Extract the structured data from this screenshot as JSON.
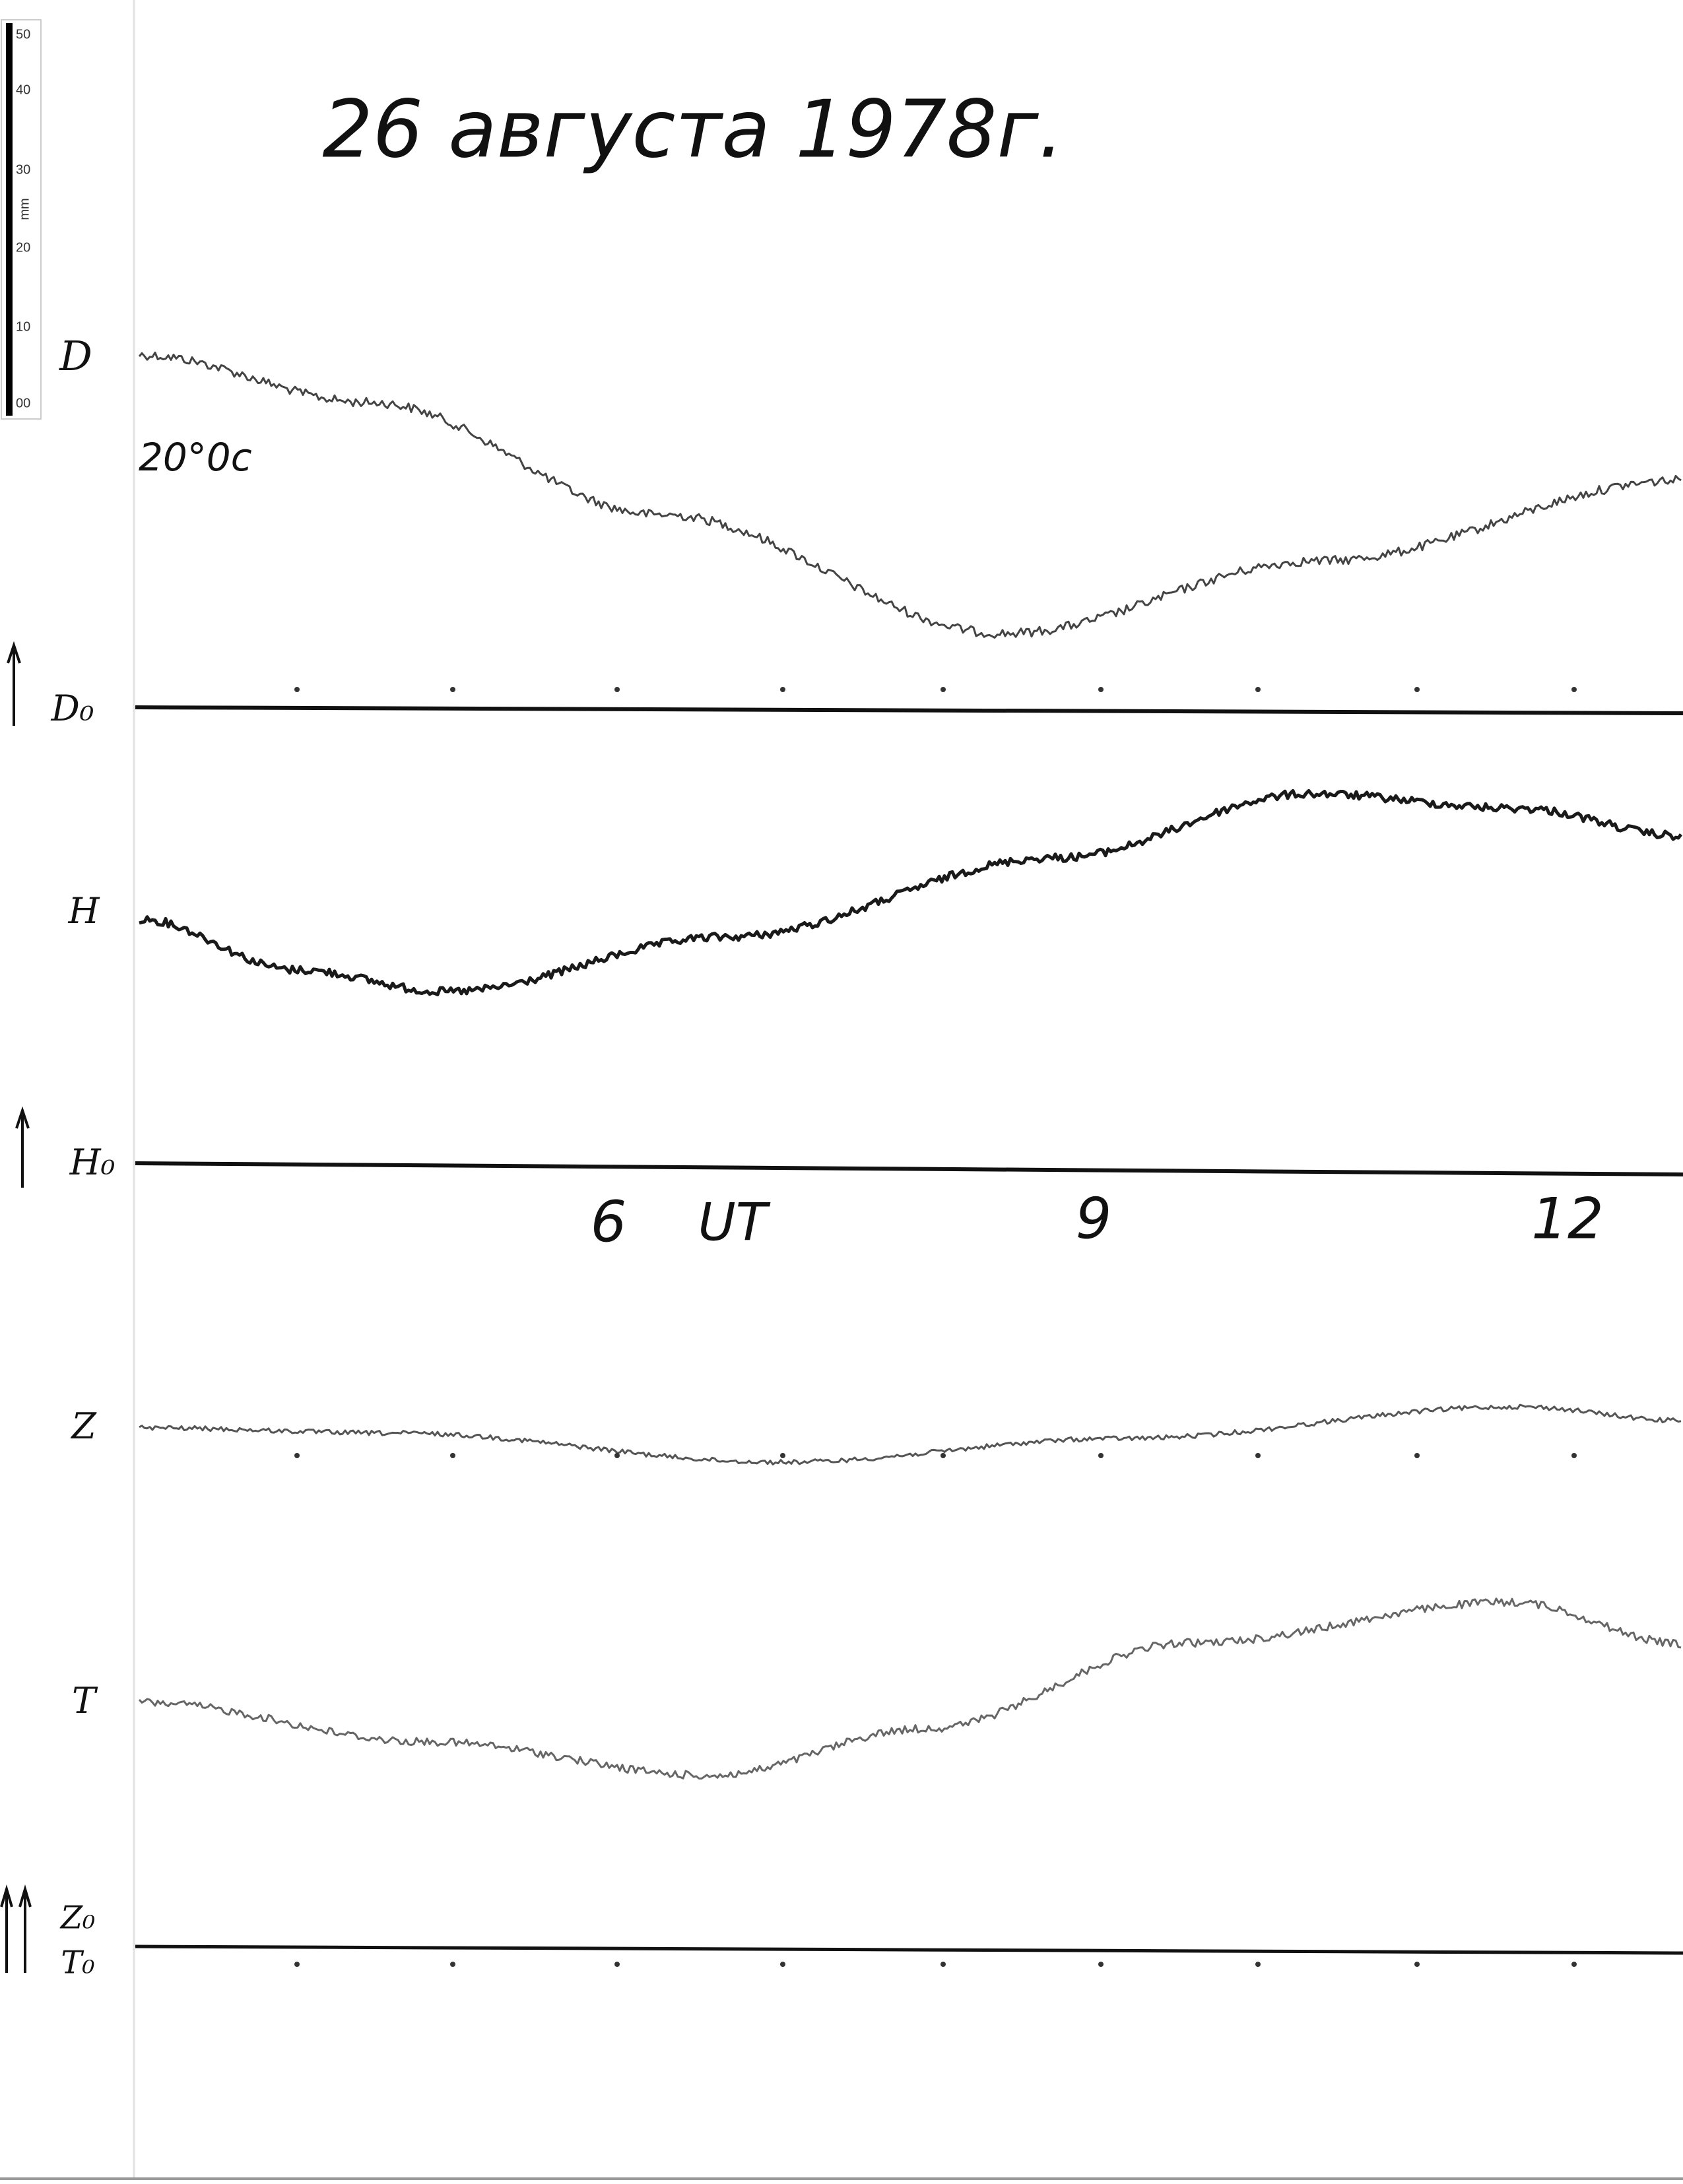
{
  "header": {
    "title": "26 августа 1978г."
  },
  "ruler": {
    "unit": "mm",
    "labels": [
      "50",
      "40",
      "30",
      "20",
      "10",
      "00"
    ]
  },
  "traces": [
    {
      "label": "D",
      "note": "20°0c",
      "baseline_label": "D₀"
    },
    {
      "label": "H",
      "baseline_label": "H₀"
    },
    {
      "label": "Z",
      "baseline_label": "Z₀"
    },
    {
      "label": "T",
      "baseline_label": "T₀"
    }
  ],
  "time_axis": {
    "labels": [
      "6",
      "UT",
      "9",
      "12"
    ]
  }
}
